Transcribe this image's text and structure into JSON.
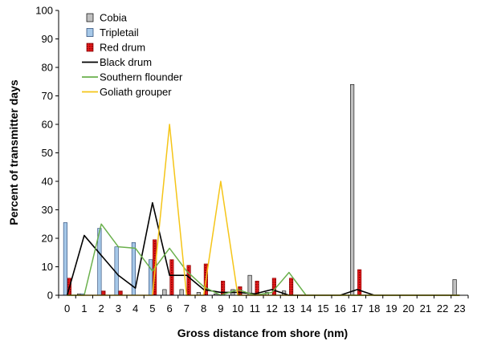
{
  "chart_data": {
    "type": "bar",
    "xlabel": "Gross distance from shore (nm)",
    "ylabel": "Percent of transmitter days",
    "ylim": [
      0,
      100
    ],
    "yticks": [
      0,
      10,
      20,
      30,
      40,
      50,
      60,
      70,
      80,
      90,
      100
    ],
    "categories": [
      "0",
      "1",
      "2",
      "3",
      "4",
      "5",
      "6",
      "7",
      "8",
      "9",
      "10",
      "11",
      "12",
      "13",
      "14",
      "15",
      "16",
      "17",
      "18",
      "19",
      "20",
      "21",
      "22",
      "23"
    ],
    "grid": false,
    "legend_position": "top-left",
    "series": [
      {
        "name": "Cobia",
        "kind": "bar",
        "color": "#c0c0c0",
        "stroke": "#000000",
        "values": [
          0,
          0.5,
          0,
          0,
          0,
          0,
          2,
          2,
          1,
          0.5,
          2,
          7,
          1,
          1.5,
          0,
          0,
          0,
          74,
          0,
          0,
          0,
          0,
          0,
          5.5
        ]
      },
      {
        "name": "Tripletail",
        "kind": "bar",
        "color": "#a6c8e8",
        "stroke": "#1f3f6f",
        "values": [
          25.5,
          0.5,
          23.5,
          17,
          18.5,
          12.5,
          0,
          0,
          0,
          0,
          0,
          0,
          0,
          0,
          0,
          0,
          0,
          0,
          0,
          0,
          0,
          0,
          0,
          0
        ]
      },
      {
        "name": "Red drum",
        "kind": "bar",
        "color": "#e31a1c",
        "stroke": "#8b0000",
        "values": [
          6,
          0,
          1.5,
          1.5,
          0,
          19.5,
          12.5,
          10.5,
          11,
          5,
          3,
          5,
          6,
          6,
          0,
          0,
          0,
          9,
          0,
          0,
          0,
          0,
          0,
          0
        ]
      },
      {
        "name": "Black drum",
        "kind": "line",
        "color": "#000000",
        "values": [
          0,
          21,
          14,
          7,
          2.5,
          32.5,
          7,
          7,
          2,
          1,
          1,
          0.5,
          2,
          0,
          0,
          0,
          0,
          2,
          0,
          0,
          0,
          0,
          0,
          0
        ]
      },
      {
        "name": "Southern flounder",
        "kind": "line",
        "color": "#6ab04c",
        "values": [
          0,
          0,
          25,
          17,
          16.5,
          8.5,
          16.5,
          8.5,
          3,
          0,
          2,
          0,
          1,
          8,
          0,
          0,
          0,
          0,
          0,
          0,
          0,
          0,
          0,
          0
        ]
      },
      {
        "name": "Goliath grouper",
        "kind": "line",
        "color": "#f5c518",
        "values": [
          0,
          0,
          0,
          0,
          0,
          0,
          60,
          0,
          0,
          40,
          0,
          0,
          0,
          0,
          0,
          0,
          0,
          0,
          0,
          0,
          0,
          0,
          0,
          0
        ]
      }
    ]
  }
}
